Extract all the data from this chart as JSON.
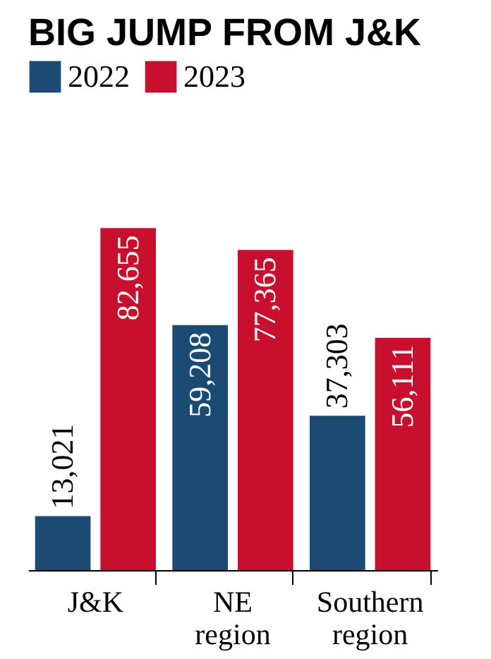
{
  "chart_data": {
    "type": "bar",
    "title": "BIG JUMP FROM J&K",
    "categories": [
      "J&K",
      "NE region",
      "Southern region"
    ],
    "series": [
      {
        "name": "2022",
        "color": "#1b4a72",
        "values": [
          13021,
          59208,
          37303
        ],
        "value_labels": [
          "13,021",
          "59,208",
          "37,303"
        ]
      },
      {
        "name": "2023",
        "color": "#c8102e",
        "values": [
          82655,
          77365,
          56111
        ],
        "value_labels": [
          "82,655",
          "77,365",
          "56,111"
        ]
      }
    ],
    "legend": "top",
    "grid": false
  }
}
